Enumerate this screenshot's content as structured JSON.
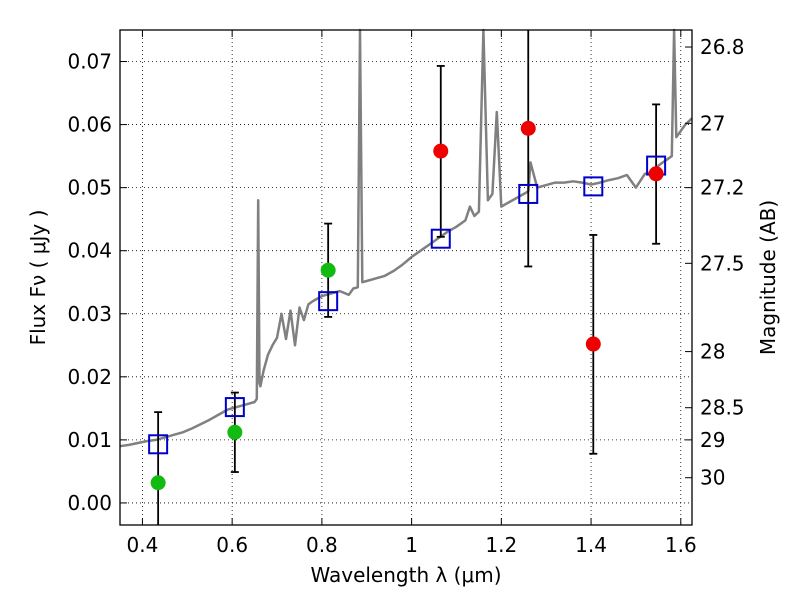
{
  "chart_data": {
    "type": "scatter",
    "xlabel": "Wavelength  λ (μm)",
    "ylabel": "Flux  Fν  ( μJy )",
    "y2label": "Magnitude (AB)",
    "xlim": [
      0.35,
      1.625
    ],
    "ylim": [
      -0.0035,
      0.075
    ],
    "grid": true,
    "x_ticks": [
      0.4,
      0.6,
      0.8,
      1.0,
      1.2,
      1.4,
      1.6
    ],
    "x_tick_labels": [
      "0.4",
      "0.6",
      "0.8",
      "1",
      "1.2",
      "1.4",
      "1.6"
    ],
    "y_ticks": [
      0.0,
      0.01,
      0.02,
      0.03,
      0.04,
      0.05,
      0.06,
      0.07
    ],
    "y_tick_labels": [
      "0.00",
      "0.01",
      "0.02",
      "0.03",
      "0.04",
      "0.05",
      "0.06",
      "0.07"
    ],
    "mag_ticks": [
      {
        "label": "26.8",
        "flux": 0.0723
      },
      {
        "label": "27",
        "flux": 0.0602
      },
      {
        "label": "27.2",
        "flux": 0.05
      },
      {
        "label": "27.5",
        "flux": 0.038
      },
      {
        "label": "28",
        "flux": 0.024
      },
      {
        "label": "28.5",
        "flux": 0.0151
      },
      {
        "label": "29",
        "flux": 0.01
      },
      {
        "label": "30",
        "flux": 0.004
      }
    ],
    "colors": {
      "spectrum": "#808080",
      "model": "#0000cc",
      "detected": "#11bb11",
      "upper": "#ee0000",
      "errorbar": "#000000"
    },
    "spectrum": [
      [
        0.35,
        0.009
      ],
      [
        0.37,
        0.0092
      ],
      [
        0.39,
        0.0095
      ],
      [
        0.41,
        0.0098
      ],
      [
        0.43,
        0.01
      ],
      [
        0.45,
        0.0104
      ],
      [
        0.47,
        0.0108
      ],
      [
        0.49,
        0.0112
      ],
      [
        0.51,
        0.0118
      ],
      [
        0.53,
        0.0125
      ],
      [
        0.55,
        0.0132
      ],
      [
        0.57,
        0.014
      ],
      [
        0.59,
        0.0148
      ],
      [
        0.61,
        0.0152
      ],
      [
        0.63,
        0.0156
      ],
      [
        0.65,
        0.016
      ],
      [
        0.655,
        0.0165
      ],
      [
        0.658,
        0.048
      ],
      [
        0.661,
        0.019
      ],
      [
        0.663,
        0.0185
      ],
      [
        0.67,
        0.021
      ],
      [
        0.68,
        0.0235
      ],
      [
        0.69,
        0.025
      ],
      [
        0.7,
        0.0262
      ],
      [
        0.71,
        0.03
      ],
      [
        0.72,
        0.026
      ],
      [
        0.73,
        0.0305
      ],
      [
        0.74,
        0.025
      ],
      [
        0.75,
        0.031
      ],
      [
        0.76,
        0.029
      ],
      [
        0.77,
        0.0315
      ],
      [
        0.78,
        0.032
      ],
      [
        0.8,
        0.0328
      ],
      [
        0.82,
        0.0332
      ],
      [
        0.84,
        0.0336
      ],
      [
        0.86,
        0.033
      ],
      [
        0.87,
        0.034
      ],
      [
        0.88,
        0.0342
      ],
      [
        0.885,
        0.075
      ],
      [
        0.89,
        0.035
      ],
      [
        0.9,
        0.0352
      ],
      [
        0.92,
        0.0356
      ],
      [
        0.94,
        0.036
      ],
      [
        0.96,
        0.0368
      ],
      [
        0.98,
        0.0378
      ],
      [
        1.0,
        0.039
      ],
      [
        1.02,
        0.04
      ],
      [
        1.04,
        0.041
      ],
      [
        1.06,
        0.042
      ],
      [
        1.08,
        0.043
      ],
      [
        1.1,
        0.0438
      ],
      [
        1.12,
        0.0448
      ],
      [
        1.13,
        0.047
      ],
      [
        1.14,
        0.0455
      ],
      [
        1.15,
        0.0462
      ],
      [
        1.16,
        0.075
      ],
      [
        1.17,
        0.048
      ],
      [
        1.18,
        0.049
      ],
      [
        1.19,
        0.062
      ],
      [
        1.2,
        0.047
      ],
      [
        1.22,
        0.0478
      ],
      [
        1.24,
        0.0486
      ],
      [
        1.26,
        0.0494
      ],
      [
        1.265,
        0.054
      ],
      [
        1.28,
        0.05
      ],
      [
        1.3,
        0.0504
      ],
      [
        1.32,
        0.0508
      ],
      [
        1.34,
        0.0508
      ],
      [
        1.36,
        0.051
      ],
      [
        1.38,
        0.0508
      ],
      [
        1.4,
        0.0505
      ],
      [
        1.42,
        0.0508
      ],
      [
        1.44,
        0.0512
      ],
      [
        1.46,
        0.0515
      ],
      [
        1.48,
        0.052
      ],
      [
        1.5,
        0.05
      ],
      [
        1.52,
        0.0522
      ],
      [
        1.54,
        0.0525
      ],
      [
        1.55,
        0.0535
      ],
      [
        1.56,
        0.054
      ],
      [
        1.57,
        0.0545
      ],
      [
        1.58,
        0.055
      ],
      [
        1.585,
        0.075
      ],
      [
        1.59,
        0.058
      ],
      [
        1.6,
        0.059
      ],
      [
        1.61,
        0.06
      ],
      [
        1.625,
        0.061
      ]
    ],
    "model_photometry": [
      {
        "x": 0.435,
        "y": 0.0093
      },
      {
        "x": 0.606,
        "y": 0.0152
      },
      {
        "x": 0.814,
        "y": 0.032
      },
      {
        "x": 1.065,
        "y": 0.0419
      },
      {
        "x": 1.26,
        "y": 0.049
      },
      {
        "x": 1.405,
        "y": 0.0502
      },
      {
        "x": 1.545,
        "y": 0.0535
      }
    ],
    "detections": [
      {
        "x": 0.435,
        "y": 0.0032,
        "yerr_low": -0.0035,
        "yerr_high": 0.0144
      },
      {
        "x": 0.606,
        "y": 0.0112,
        "yerr_low": 0.0049,
        "yerr_high": 0.0175
      },
      {
        "x": 0.814,
        "y": 0.0369,
        "yerr_low": 0.0295,
        "yerr_high": 0.0443
      }
    ],
    "upper_points": [
      {
        "x": 1.065,
        "y": 0.0558,
        "yerr_low": 0.0422,
        "yerr_high": 0.0693
      },
      {
        "x": 1.26,
        "y": 0.0594,
        "yerr_low": 0.0375,
        "yerr_high": 0.075
      },
      {
        "x": 1.405,
        "y": 0.0252,
        "yerr_low": 0.0078,
        "yerr_high": 0.0425
      },
      {
        "x": 1.545,
        "y": 0.0522,
        "yerr_low": 0.0411,
        "yerr_high": 0.0632
      }
    ]
  }
}
